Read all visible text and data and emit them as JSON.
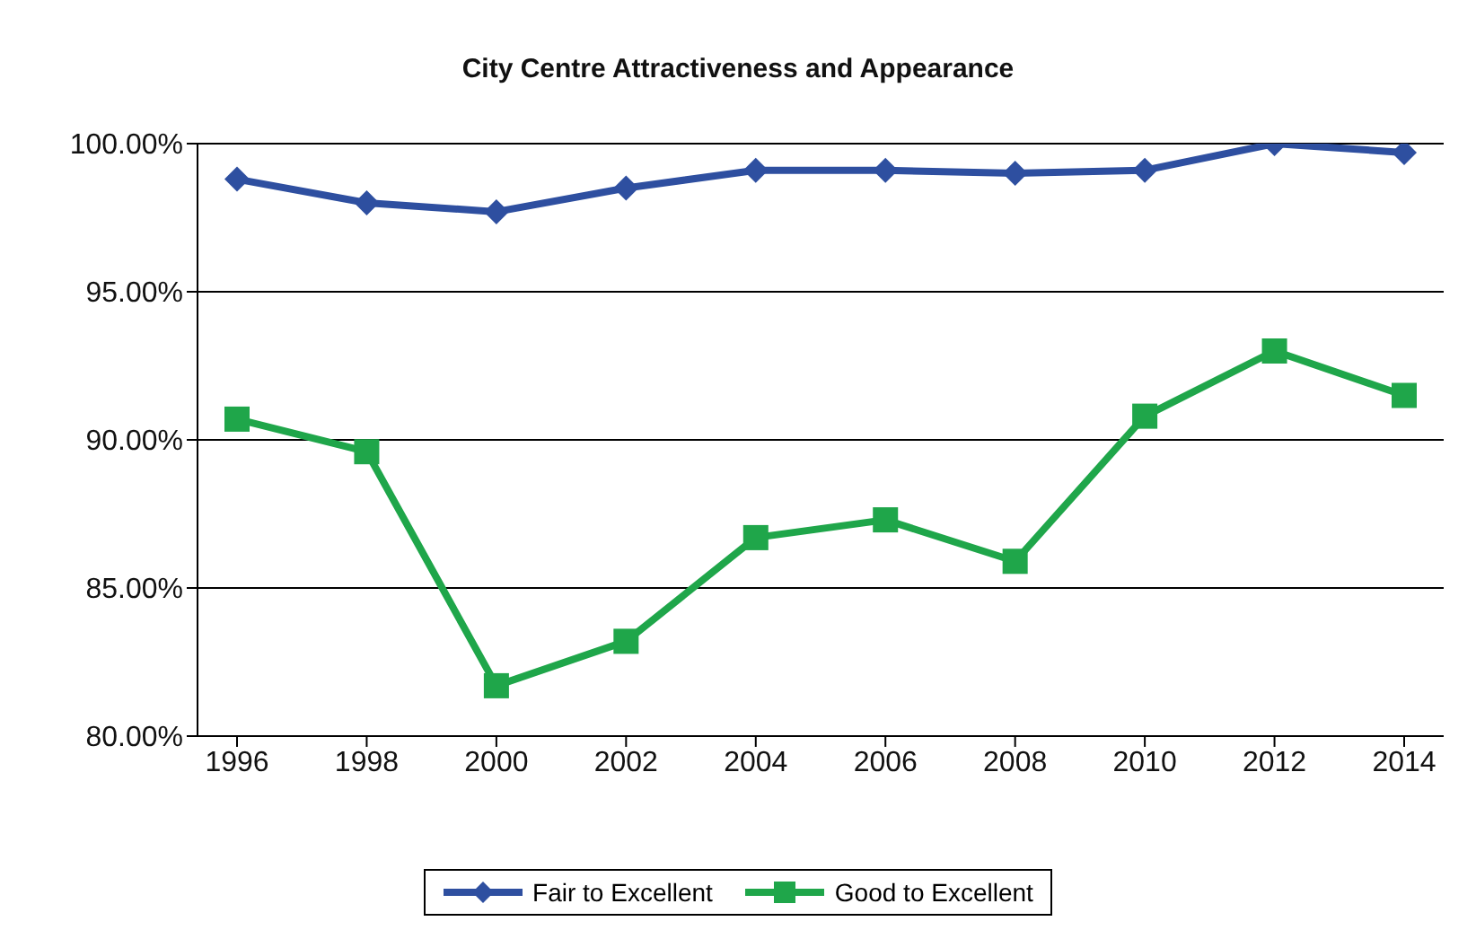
{
  "chart_data": {
    "type": "line",
    "title": "City Centre Attractiveness and Appearance",
    "categories": [
      "1996",
      "1998",
      "2000",
      "2002",
      "2004",
      "2006",
      "2008",
      "2010",
      "2012",
      "2014"
    ],
    "series": [
      {
        "name": "Fair to Excellent",
        "color": "#2e4fa0",
        "marker": "diamond",
        "values": [
          98.8,
          98.0,
          97.7,
          98.5,
          99.1,
          99.1,
          99.0,
          99.1,
          100.0,
          99.7
        ]
      },
      {
        "name": "Good to Excellent",
        "color": "#1fa64a",
        "marker": "square",
        "values": [
          90.7,
          89.6,
          81.7,
          83.2,
          86.7,
          87.3,
          85.9,
          90.8,
          93.0,
          91.5
        ]
      }
    ],
    "ylim": [
      80,
      100
    ],
    "yticks": [
      {
        "value": 80,
        "label": "80.00%"
      },
      {
        "value": 85,
        "label": "85.00%"
      },
      {
        "value": 90,
        "label": "90.00%"
      },
      {
        "value": 95,
        "label": "95.00%"
      },
      {
        "value": 100,
        "label": "100.00%"
      }
    ],
    "grid": "y",
    "legend": "bottom",
    "line_style": "solid"
  }
}
